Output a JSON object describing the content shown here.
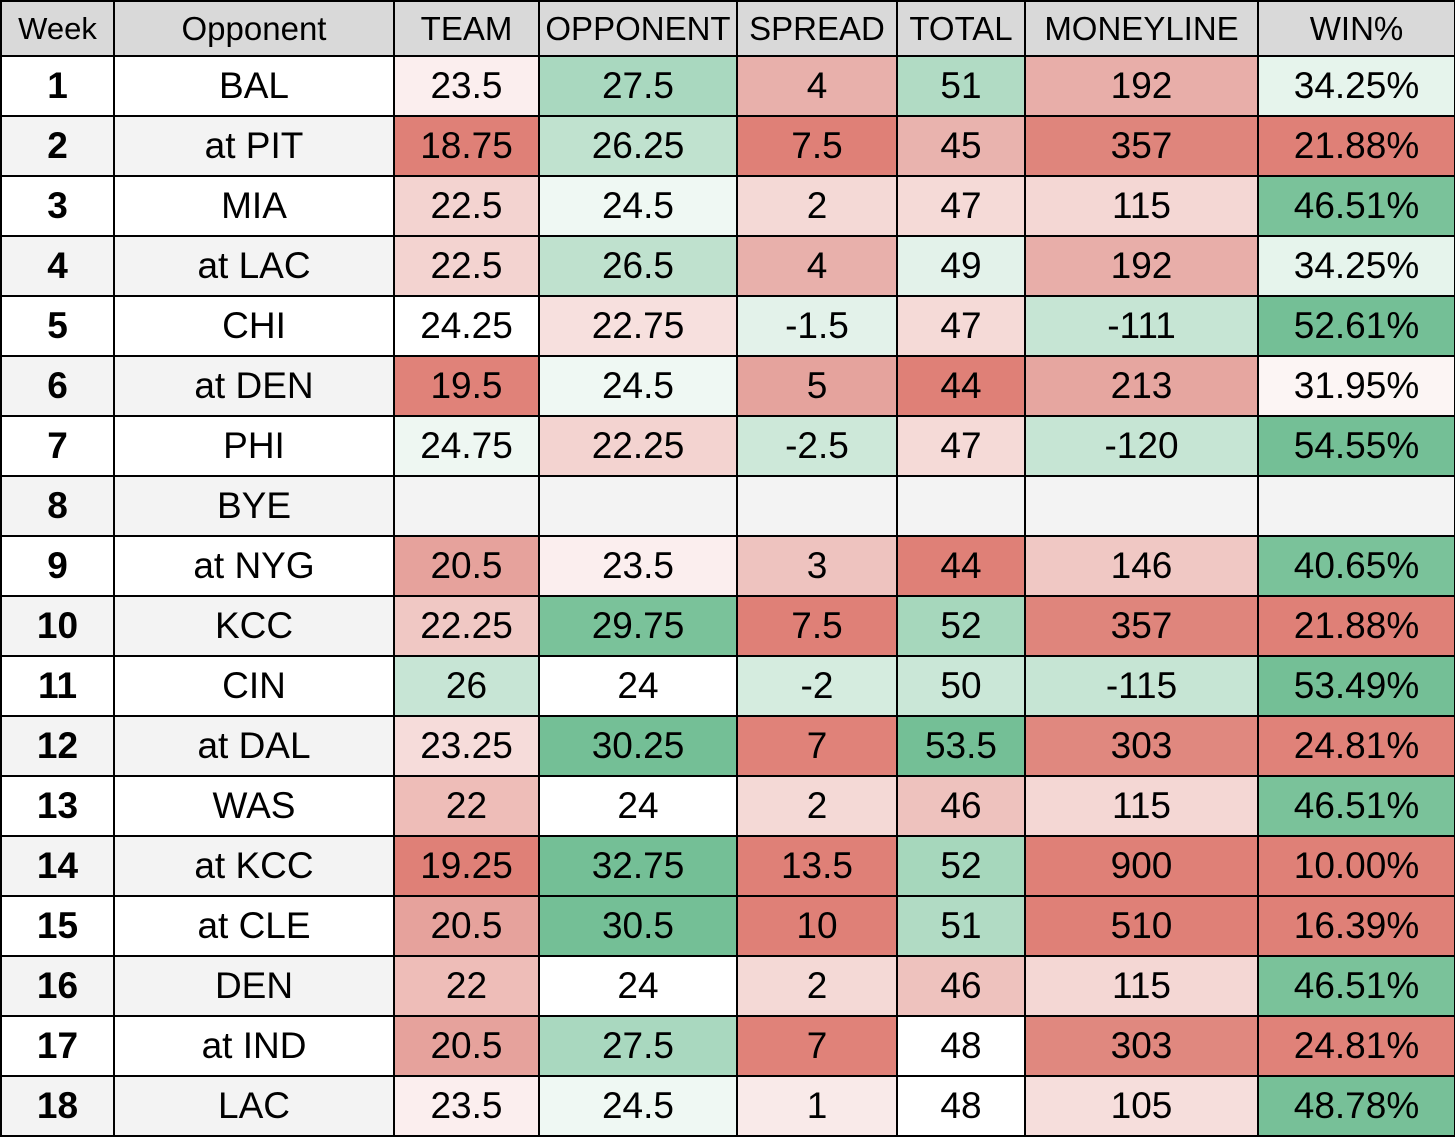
{
  "headers": [
    "Week",
    "Opponent",
    "TEAM",
    "OPPONENT",
    "SPREAD",
    "TOTAL",
    "MONEYLINE",
    "WIN%"
  ],
  "rows": [
    {
      "week": "1",
      "opponent": "BAL",
      "team": "23.5",
      "opp": "27.5",
      "spread": "4",
      "total": "51",
      "moneyline": "192",
      "win": "34.25%",
      "colors": [
        "#fbeeee",
        "#a9d8bf",
        "#e8b0ab",
        "#b1dbc4",
        "#e8aea9",
        "#e6f4ec"
      ]
    },
    {
      "week": "2",
      "opponent": "at PIT",
      "team": "18.75",
      "opp": "26.25",
      "spread": "7.5",
      "total": "45",
      "moneyline": "357",
      "win": "21.88%",
      "colors": [
        "#df8077",
        "#c0e2cf",
        "#df8077",
        "#e9b3ae",
        "#df857c",
        "#df8077"
      ]
    },
    {
      "week": "3",
      "opponent": "MIA",
      "team": "22.5",
      "opp": "24.5",
      "spread": "2",
      "total": "47",
      "moneyline": "115",
      "win": "46.51%",
      "colors": [
        "#f3d3d0",
        "#eff8f3",
        "#f4d9d6",
        "#f5dad7",
        "#f4d7d4",
        "#7ac29a"
      ]
    },
    {
      "week": "4",
      "opponent": "at LAC",
      "team": "22.5",
      "opp": "26.5",
      "spread": "4",
      "total": "49",
      "moneyline": "192",
      "win": "34.25%",
      "colors": [
        "#f3d3d0",
        "#bfe1ce",
        "#e8b0ab",
        "#e3f2ea",
        "#e8aea9",
        "#e6f4ec"
      ]
    },
    {
      "week": "5",
      "opponent": "CHI",
      "team": "24.25",
      "opp": "22.75",
      "spread": "-1.5",
      "total": "47",
      "moneyline": "-111",
      "win": "52.61%",
      "colors": [
        "#ffffff",
        "#f7e0de",
        "#e3f2ea",
        "#f5dad7",
        "#c6e5d4",
        "#74bf96"
      ]
    },
    {
      "week": "6",
      "opponent": "at DEN",
      "team": "19.5",
      "opp": "24.5",
      "spread": "5",
      "total": "44",
      "moneyline": "213",
      "win": "31.95%",
      "colors": [
        "#e08279",
        "#eff8f3",
        "#e5a39d",
        "#df8077",
        "#e6a6a0",
        "#fcf5f4"
      ]
    },
    {
      "week": "7",
      "opponent": "PHI",
      "team": "24.75",
      "opp": "22.25",
      "spread": "-2.5",
      "total": "47",
      "moneyline": "-120",
      "win": "54.55%",
      "colors": [
        "#eef7f2",
        "#f3d3d0",
        "#cde8d9",
        "#f5dad7",
        "#c6e5d4",
        "#74bf96"
      ]
    },
    {
      "week": "8",
      "opponent": "BYE",
      "team": "",
      "opp": "",
      "spread": "",
      "total": "",
      "moneyline": "",
      "win": "",
      "colors": [
        "#f3f3f3",
        "#f3f3f3",
        "#f3f3f3",
        "#f3f3f3",
        "#f3f3f3",
        "#f3f3f3"
      ]
    },
    {
      "week": "9",
      "opponent": "at NYG",
      "team": "20.5",
      "opp": "23.5",
      "spread": "3",
      "total": "44",
      "moneyline": "146",
      "win": "40.65%",
      "colors": [
        "#e6a29c",
        "#fbeeee",
        "#eec3bf",
        "#df8077",
        "#f0c8c4",
        "#7ac29a"
      ]
    },
    {
      "week": "10",
      "opponent": "KCC",
      "team": "22.25",
      "opp": "29.75",
      "spread": "7.5",
      "total": "52",
      "moneyline": "357",
      "win": "21.88%",
      "colors": [
        "#f0c8c4",
        "#7ac29a",
        "#df8077",
        "#a6d7bc",
        "#df857c",
        "#df8077"
      ]
    },
    {
      "week": "11",
      "opponent": "CIN",
      "team": "26",
      "opp": "24",
      "spread": "-2",
      "total": "50",
      "moneyline": "-115",
      "win": "53.49%",
      "colors": [
        "#c7e5d5",
        "#ffffff",
        "#d5ecdf",
        "#cae7d7",
        "#c6e5d4",
        "#74bf96"
      ]
    },
    {
      "week": "12",
      "opponent": "at DAL",
      "team": "23.25",
      "opp": "30.25",
      "spread": "7",
      "total": "53.5",
      "moneyline": "303",
      "win": "24.81%",
      "colors": [
        "#f6dcda",
        "#74bf96",
        "#e08279",
        "#74bf96",
        "#e0887f",
        "#e08279"
      ]
    },
    {
      "week": "13",
      "opponent": "WAS",
      "team": "22",
      "opp": "24",
      "spread": "2",
      "total": "46",
      "moneyline": "115",
      "win": "46.51%",
      "colors": [
        "#eebdb8",
        "#ffffff",
        "#f4d9d6",
        "#eec2be",
        "#f4d7d4",
        "#7ac29a"
      ]
    },
    {
      "week": "14",
      "opponent": "at KCC",
      "team": "19.25",
      "opp": "32.75",
      "spread": "13.5",
      "total": "52",
      "moneyline": "900",
      "win": "10.00%",
      "colors": [
        "#df8077",
        "#74bf96",
        "#df8077",
        "#a6d7bc",
        "#df8077",
        "#df8077"
      ]
    },
    {
      "week": "15",
      "opponent": "at CLE",
      "team": "20.5",
      "opp": "30.5",
      "spread": "10",
      "total": "51",
      "moneyline": "510",
      "win": "16.39%",
      "colors": [
        "#e6a29c",
        "#74bf96",
        "#df8077",
        "#b1dbc4",
        "#df8077",
        "#df8077"
      ]
    },
    {
      "week": "16",
      "opponent": "DEN",
      "team": "22",
      "opp": "24",
      "spread": "2",
      "total": "46",
      "moneyline": "115",
      "win": "46.51%",
      "colors": [
        "#eebdb8",
        "#ffffff",
        "#f4d9d6",
        "#eec2be",
        "#f4d7d4",
        "#7ac29a"
      ]
    },
    {
      "week": "17",
      "opponent": "at IND",
      "team": "20.5",
      "opp": "27.5",
      "spread": "7",
      "total": "48",
      "moneyline": "303",
      "win": "24.81%",
      "colors": [
        "#e6a29c",
        "#a9d8bf",
        "#e08279",
        "#ffffff",
        "#e0887f",
        "#e08279"
      ]
    },
    {
      "week": "18",
      "opponent": "LAC",
      "team": "23.5",
      "opp": "24.5",
      "spread": "1",
      "total": "48",
      "moneyline": "105",
      "win": "48.78%",
      "colors": [
        "#fbeeee",
        "#eff8f3",
        "#f9eae9",
        "#ffffff",
        "#f6dedc",
        "#77c098"
      ]
    }
  ]
}
